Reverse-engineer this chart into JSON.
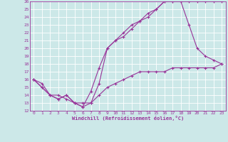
{
  "xlabel": "Windchill (Refroidissement éolien,°C)",
  "bg_color": "#cce8e8",
  "grid_color": "#ffffff",
  "line_color": "#993399",
  "xlim": [
    -0.5,
    23.5
  ],
  "ylim": [
    12,
    26
  ],
  "xticks": [
    0,
    1,
    2,
    3,
    4,
    5,
    6,
    7,
    8,
    9,
    10,
    11,
    12,
    13,
    14,
    15,
    16,
    17,
    18,
    19,
    20,
    21,
    22,
    23
  ],
  "yticks": [
    12,
    13,
    14,
    15,
    16,
    17,
    18,
    19,
    20,
    21,
    22,
    23,
    24,
    25,
    26
  ],
  "line1_x": [
    0,
    1,
    2,
    3,
    4,
    5,
    6,
    7,
    8,
    9,
    10,
    11,
    12,
    13,
    14,
    15,
    16,
    17,
    18,
    19,
    20,
    21,
    22,
    23
  ],
  "line1_y": [
    16,
    15,
    14,
    13.5,
    14,
    13,
    12.5,
    13,
    15.5,
    20,
    21,
    21.5,
    22.5,
    23.5,
    24.5,
    25,
    26,
    26,
    26,
    26,
    26,
    26,
    26,
    26
  ],
  "line2_x": [
    0,
    1,
    2,
    3,
    4,
    5,
    6,
    7,
    8,
    9,
    10,
    11,
    12,
    13,
    14,
    15,
    16,
    17,
    18,
    19,
    20,
    21,
    22,
    23
  ],
  "line2_y": [
    16,
    15,
    14,
    13.5,
    14,
    13,
    12.5,
    14.5,
    17.5,
    20,
    21,
    22,
    23,
    23.5,
    24,
    25,
    26,
    26,
    26,
    23,
    20,
    19,
    18.5,
    18
  ],
  "line3_x": [
    0,
    1,
    2,
    3,
    4,
    5,
    6,
    7,
    8,
    9,
    10,
    11,
    12,
    13,
    14,
    15,
    16,
    17,
    18,
    19,
    20,
    21,
    22,
    23
  ],
  "line3_y": [
    16,
    15.5,
    14,
    14,
    13.5,
    13,
    13,
    13,
    14,
    15,
    15.5,
    16,
    16.5,
    17,
    17,
    17,
    17,
    17.5,
    17.5,
    17.5,
    17.5,
    17.5,
    17.5,
    18
  ]
}
